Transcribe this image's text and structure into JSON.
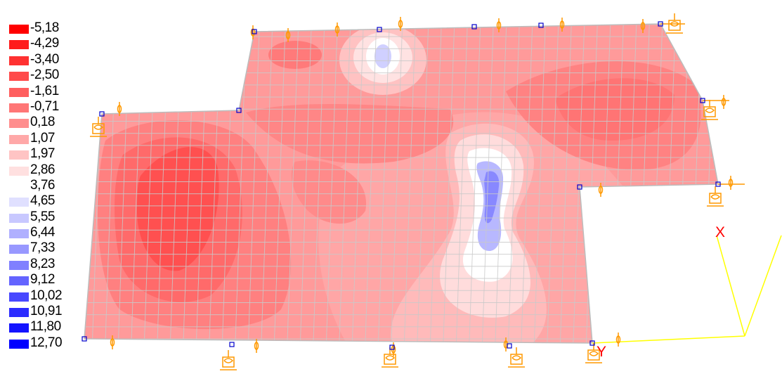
{
  "legend": {
    "items": [
      {
        "label": "-5,18",
        "color": "#ff0000"
      },
      {
        "label": "-4,29",
        "color": "#ff1c1c"
      },
      {
        "label": "-3,40",
        "color": "#ff3131"
      },
      {
        "label": "-2,50",
        "color": "#ff4a4a"
      },
      {
        "label": "-1,61",
        "color": "#ff5e5e"
      },
      {
        "label": "-0,71",
        "color": "#ff7676"
      },
      {
        "label": "0,18",
        "color": "#ff8e8e"
      },
      {
        "label": "1,07",
        "color": "#ffa8a8"
      },
      {
        "label": "1,97",
        "color": "#ffc4c4"
      },
      {
        "label": "2,86",
        "color": "#ffe0e0"
      },
      {
        "label": "3,76",
        "color": "#ffffff"
      },
      {
        "label": "4,65",
        "color": "#e0e0ff"
      },
      {
        "label": "5,55",
        "color": "#c8c8ff"
      },
      {
        "label": "6,44",
        "color": "#b0b0ff"
      },
      {
        "label": "7,33",
        "color": "#9898ff"
      },
      {
        "label": "8,23",
        "color": "#8080ff"
      },
      {
        "label": "9,12",
        "color": "#6464ff"
      },
      {
        "label": "10,02",
        "color": "#4848ff"
      },
      {
        "label": "10,91",
        "color": "#2c2cff"
      },
      {
        "label": "11,80",
        "color": "#1414ff"
      },
      {
        "label": "12,70",
        "color": "#0000ff"
      }
    ]
  },
  "axes": {
    "x_label": "X",
    "y_label": "Y",
    "axis_color": "#ffff00",
    "label_color": "#ff0000"
  },
  "colors": {
    "slab_base": "#ff9a9a",
    "mesh_line": "#c9c9c9",
    "support_color": "#ff9900",
    "node_color": "#0000cc"
  }
}
